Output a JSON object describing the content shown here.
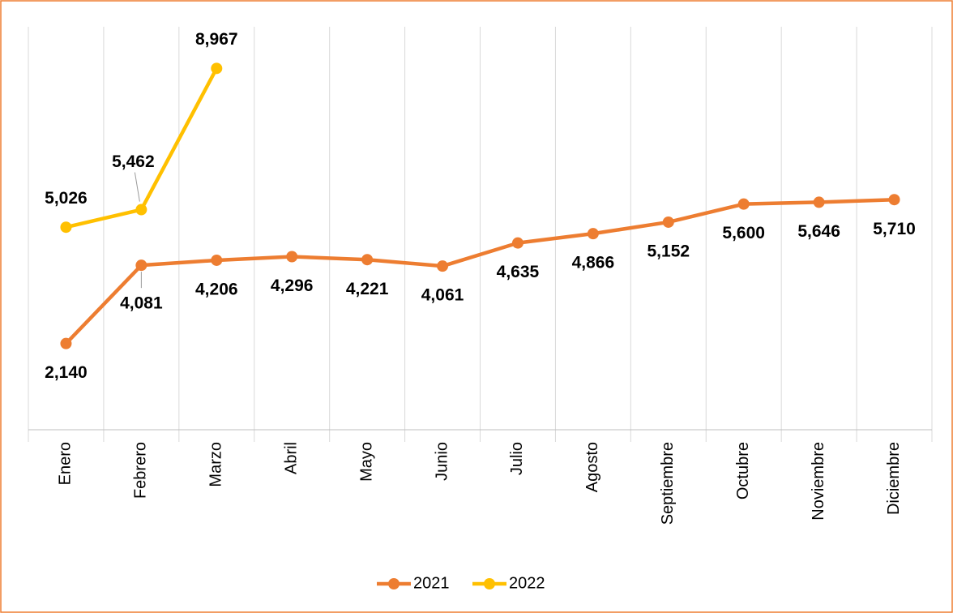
{
  "chart_data": {
    "type": "line",
    "categories": [
      "Enero",
      "Febrero",
      "Marzo",
      "Abril",
      "Mayo",
      "Junio",
      "Julio",
      "Agosto",
      "Septiembre",
      "Octubre",
      "Noviembre",
      "Diciembre"
    ],
    "series": [
      {
        "name": "2021",
        "color": "#ED7D31",
        "values": [
          2140,
          4081,
          4206,
          4296,
          4221,
          4061,
          4635,
          4866,
          5152,
          5600,
          5646,
          5710
        ],
        "value_labels": [
          "2,140",
          "4,081",
          "4,206",
          "4,296",
          "4,221",
          "4,061",
          "4,635",
          "4,866",
          "5,152",
          "5,600",
          "5,646",
          "5,710"
        ]
      },
      {
        "name": "2022",
        "color": "#FFC000",
        "values": [
          5026,
          5462,
          8967,
          null,
          null,
          null,
          null,
          null,
          null,
          null,
          null,
          null
        ],
        "value_labels": [
          "5,026",
          "5,462",
          "8,967",
          null,
          null,
          null,
          null,
          null,
          null,
          null,
          null,
          null
        ]
      }
    ],
    "ylim": [
      0,
      10000
    ],
    "legend": "bottom"
  }
}
